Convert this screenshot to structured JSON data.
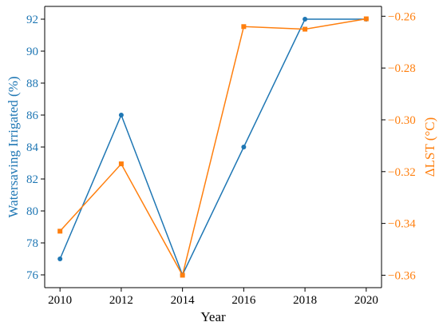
{
  "chart_data": {
    "type": "line",
    "x": [
      2010,
      2012,
      2014,
      2016,
      2018,
      2020
    ],
    "xlabel": "Year",
    "xlim": [
      2009.5,
      2020.5
    ],
    "xticks": [
      2010,
      2012,
      2014,
      2016,
      2018,
      2020
    ],
    "series": [
      {
        "axis": "left",
        "color": "#1f77b4",
        "marker": "circle",
        "values": [
          77,
          86,
          76,
          84,
          92,
          92
        ]
      },
      {
        "axis": "right",
        "color": "#ff7f0e",
        "marker": "square",
        "values": [
          -0.343,
          -0.317,
          -0.36,
          -0.264,
          -0.265,
          -0.261
        ]
      }
    ],
    "y_left": {
      "label": "Watersaving Irrigated (%)",
      "color": "#1f77b4",
      "lim": [
        75.2,
        92.8
      ],
      "ticks": [
        76,
        78,
        80,
        82,
        84,
        86,
        88,
        90,
        92
      ]
    },
    "y_right": {
      "label": "ΔLST (°C)",
      "color": "#ff7f0e",
      "lim": [
        -0.3648,
        -0.2562
      ],
      "ticks": [
        -0.36,
        -0.34,
        -0.32,
        -0.3,
        -0.28,
        -0.26
      ],
      "tick_labels": [
        "−0.36",
        "−0.34",
        "−0.32",
        "−0.30",
        "−0.28",
        "−0.26"
      ]
    },
    "grid": false,
    "legend": "none"
  }
}
